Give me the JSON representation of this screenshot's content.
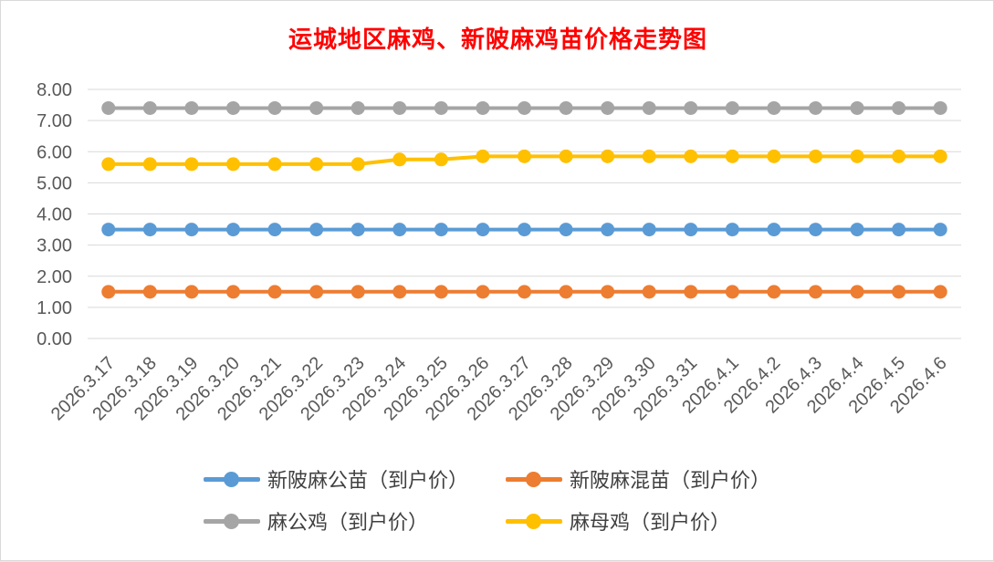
{
  "chart_data": {
    "type": "line",
    "title": "运城地区麻鸡、新陂麻鸡苗价格走势图",
    "xlabel": "",
    "ylabel": "",
    "ylim": [
      0,
      8
    ],
    "y_ticks": [
      "0.00",
      "1.00",
      "2.00",
      "3.00",
      "4.00",
      "5.00",
      "6.00",
      "7.00",
      "8.00"
    ],
    "grid": "horizontal",
    "legend_position": "bottom",
    "categories": [
      "2026.3.17",
      "2026.3.18",
      "2026.3.19",
      "2026.3.20",
      "2026.3.21",
      "2026.3.22",
      "2026.3.23",
      "2026.3.24",
      "2026.3.25",
      "2026.3.26",
      "2026.3.27",
      "2026.3.28",
      "2026.3.29",
      "2026.3.30",
      "2026.3.31",
      "2026.4.1",
      "2026.4.2",
      "2026.4.3",
      "2026.4.4",
      "2026.4.5",
      "2026.4.6"
    ],
    "series": [
      {
        "name": "新陂麻公苗（到户价）",
        "color": "#5b9bd5",
        "values": [
          3.5,
          3.5,
          3.5,
          3.5,
          3.5,
          3.5,
          3.5,
          3.5,
          3.5,
          3.5,
          3.5,
          3.5,
          3.5,
          3.5,
          3.5,
          3.5,
          3.5,
          3.5,
          3.5,
          3.5,
          3.5
        ]
      },
      {
        "name": "新陂麻混苗（到户价）",
        "color": "#ed7d31",
        "values": [
          1.5,
          1.5,
          1.5,
          1.5,
          1.5,
          1.5,
          1.5,
          1.5,
          1.5,
          1.5,
          1.5,
          1.5,
          1.5,
          1.5,
          1.5,
          1.5,
          1.5,
          1.5,
          1.5,
          1.5,
          1.5
        ]
      },
      {
        "name": "麻公鸡（到户价）",
        "color": "#a5a5a5",
        "values": [
          7.4,
          7.4,
          7.4,
          7.4,
          7.4,
          7.4,
          7.4,
          7.4,
          7.4,
          7.4,
          7.4,
          7.4,
          7.4,
          7.4,
          7.4,
          7.4,
          7.4,
          7.4,
          7.4,
          7.4,
          7.4
        ]
      },
      {
        "name": "麻母鸡（到户价）",
        "color": "#ffc000",
        "values": [
          5.6,
          5.6,
          5.6,
          5.6,
          5.6,
          5.6,
          5.6,
          5.75,
          5.75,
          5.85,
          5.85,
          5.85,
          5.85,
          5.85,
          5.85,
          5.85,
          5.85,
          5.85,
          5.85,
          5.85,
          5.85
        ]
      }
    ]
  },
  "legend": {
    "items": [
      "新陂麻公苗（到户价）",
      "新陂麻混苗（到户价）",
      "麻公鸡（到户价）",
      "麻母鸡（到户价）"
    ]
  }
}
